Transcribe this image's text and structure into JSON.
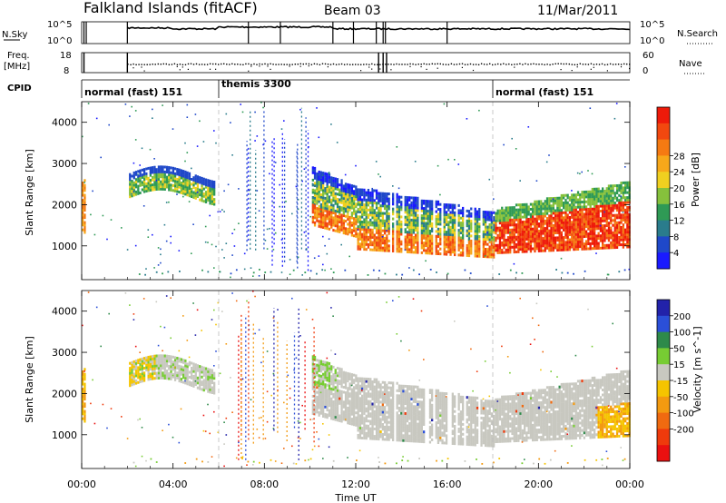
{
  "header": {
    "site": "Falkland Islands (fitACF)",
    "beam": "Beam 03",
    "date": "11/Mar/2011"
  },
  "chart_data": [
    {
      "type": "line",
      "name": "noise-panel",
      "left_label": "N.Sky",
      "right_label": "N.Search",
      "left_ticks": [
        "10^5",
        "10^0"
      ],
      "right_ticks": [
        "10^5",
        "10^0"
      ]
    },
    {
      "type": "line",
      "name": "freq-panel",
      "left_label_1": "Freq.",
      "left_label_2": "[MHz]",
      "right_label": "Nave",
      "left_ticks": [
        "18",
        "8"
      ],
      "right_ticks": [
        "60",
        "0"
      ]
    },
    {
      "type": "table",
      "name": "cpid-bar",
      "label": "CPID",
      "segments": [
        {
          "label": "normal (fast) 151",
          "start_hour": 0,
          "end_hour": 6
        },
        {
          "label": "themis 3300",
          "start_hour": 6,
          "end_hour": 18
        },
        {
          "label": "normal (fast) 151",
          "start_hour": 18,
          "end_hour": 24
        }
      ]
    },
    {
      "type": "heatmap",
      "name": "power-panel",
      "ylabel": "Slant Range [km]",
      "yticks": [
        1000,
        2000,
        3000,
        4000
      ],
      "ylim": [
        180,
        4500
      ],
      "colorbar_label": "Power [dB]",
      "colorbar_ticks": [
        "4",
        "8",
        "12",
        "16",
        "20",
        "24",
        "28"
      ],
      "colors": [
        "#1a1aff",
        "#1f48c9",
        "#2a7c8c",
        "#2f9a55",
        "#86c13c",
        "#f0d020",
        "#f7a81a",
        "#f57a12",
        "#f2480f",
        "#ee1a0a"
      ]
    },
    {
      "type": "heatmap",
      "name": "velocity-panel",
      "ylabel": "Slant Range [km]",
      "yticks": [
        1000,
        2000,
        3000,
        4000
      ],
      "ylim": [
        180,
        4500
      ],
      "colorbar_label": "Velocity [m s^-1]",
      "colorbar_ticks": [
        "200",
        "100",
        "50",
        "15",
        "-15",
        "-50",
        "-100",
        "-200"
      ],
      "colors": [
        "#2222aa",
        "#2b4fd8",
        "#2e8a4a",
        "#77cc33",
        "#c8c8c0",
        "#f5c400",
        "#f39a10",
        "#f06a10",
        "#ef3a0c",
        "#ea1010"
      ]
    }
  ],
  "xaxis": {
    "label": "Time UT",
    "ticks": [
      "00:00",
      "04:00",
      "08:00",
      "12:00",
      "16:00",
      "20:00",
      "00:00"
    ],
    "xlim_hours": [
      0,
      24
    ]
  }
}
